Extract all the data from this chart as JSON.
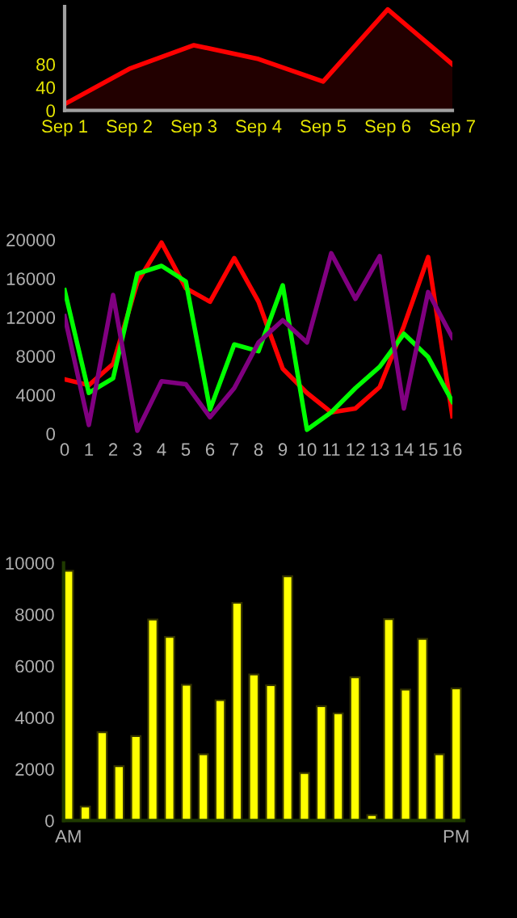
{
  "chart_data": [
    {
      "type": "area",
      "categories": [
        "Sep 1",
        "Sep 2",
        "Sep 3",
        "Sep 4",
        "Sep 5",
        "Sep 6",
        "Sep 7"
      ],
      "series": [
        {
          "color": "#ff0000",
          "values": [
            11,
            72,
            113,
            89,
            50,
            175,
            80
          ]
        }
      ],
      "ylim": [
        0,
        180
      ],
      "yticks": [
        0,
        40,
        80
      ],
      "grid": false,
      "legend": false
    },
    {
      "type": "line",
      "x": [
        0,
        1,
        2,
        3,
        4,
        5,
        6,
        7,
        8,
        9,
        10,
        11,
        12,
        13,
        14,
        15,
        16
      ],
      "series": [
        {
          "color": "#ff0000",
          "values": [
            5600,
            5000,
            7200,
            15600,
            19700,
            15000,
            13600,
            18100,
            13600,
            6700,
            4200,
            2200,
            2600,
            4800,
            11100,
            18200,
            1800
          ]
        },
        {
          "color": "#00ff00",
          "values": [
            14800,
            4200,
            5700,
            16500,
            17300,
            15700,
            2500,
            9200,
            8500,
            15300,
            400,
            2200,
            4700,
            6900,
            10300,
            7900,
            3300
          ]
        },
        {
          "color": "#800080",
          "values": [
            12100,
            900,
            14300,
            300,
            5400,
            5100,
            1700,
            4700,
            9400,
            11700,
            9400,
            18600,
            13900,
            18300,
            2600,
            14600,
            9900
          ]
        }
      ],
      "xlim": [
        0,
        16
      ],
      "xticks": [
        0,
        1,
        2,
        3,
        4,
        5,
        6,
        7,
        8,
        9,
        10,
        11,
        12,
        13,
        14,
        15,
        16
      ],
      "ylim": [
        0,
        20000
      ],
      "yticks": [
        0,
        4000,
        8000,
        12000,
        16000,
        20000
      ],
      "grid": false,
      "legend": false
    },
    {
      "type": "bar",
      "categories": [
        "AM",
        null,
        null,
        null,
        null,
        null,
        null,
        null,
        null,
        null,
        null,
        null,
        null,
        null,
        null,
        null,
        null,
        null,
        null,
        null,
        null,
        null,
        null,
        "PM"
      ],
      "values": [
        9690,
        540,
        3430,
        2110,
        3280,
        7800,
        7130,
        5270,
        2570,
        4670,
        8450,
        5670,
        5250,
        9480,
        1840,
        4440,
        4160,
        5560,
        210,
        7820,
        5080,
        7050,
        2570,
        5130
      ],
      "color": "#ffff00",
      "ylim": [
        0,
        10000
      ],
      "yticks": [
        0,
        2000,
        4000,
        6000,
        8000,
        10000
      ],
      "grid": false,
      "legend": false
    }
  ]
}
